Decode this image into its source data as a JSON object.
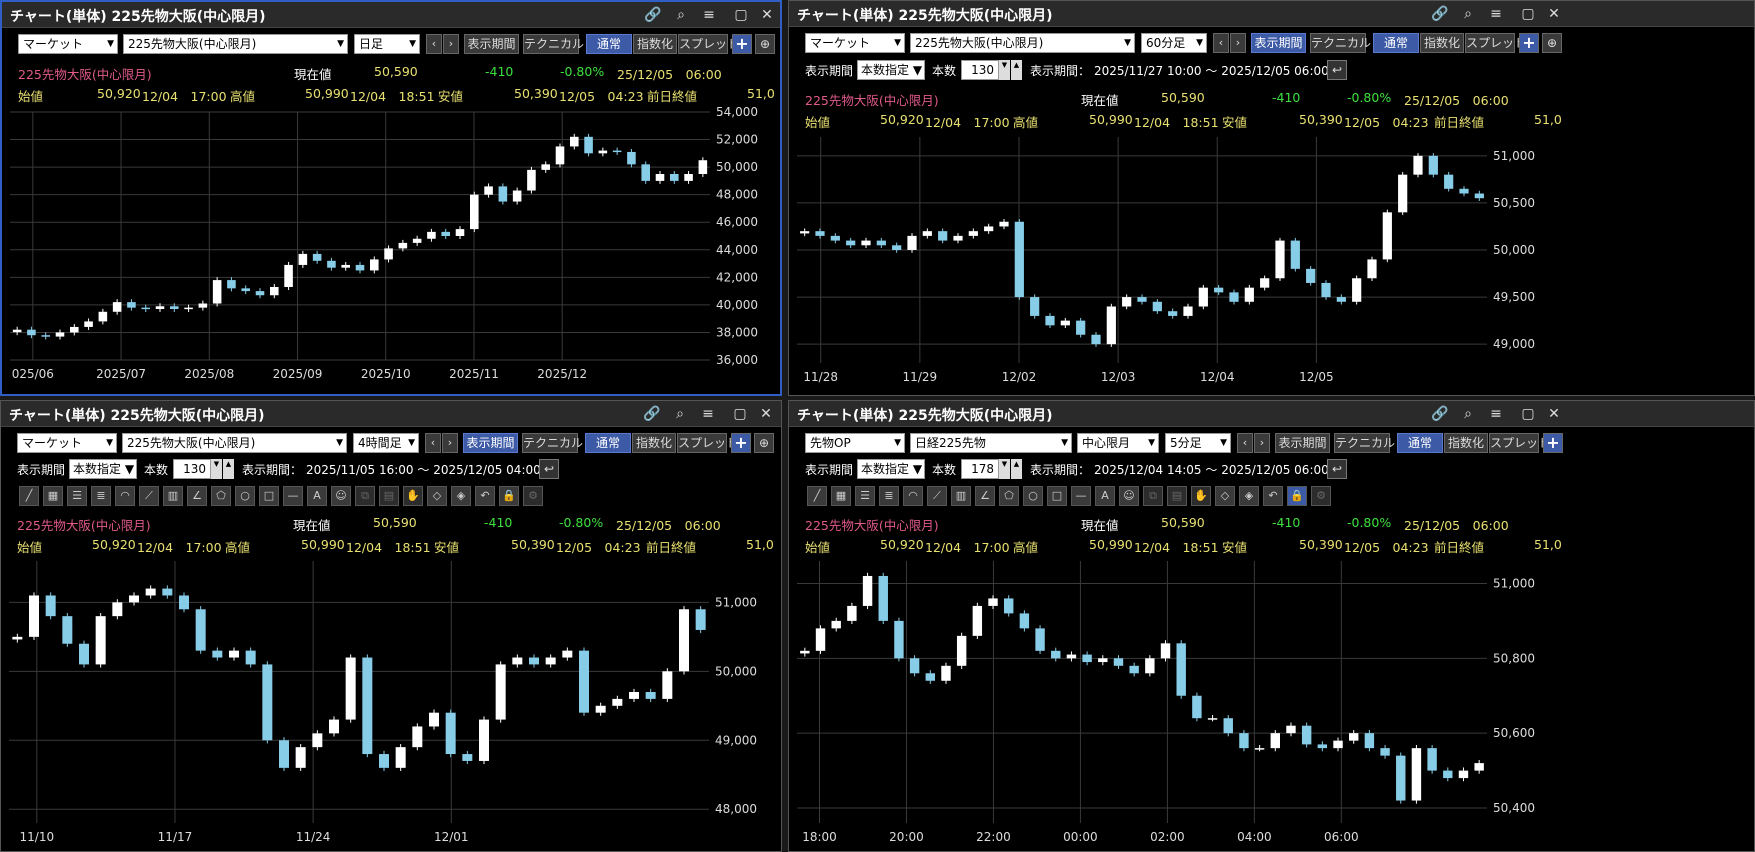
{
  "colors": {
    "accent": "#3c5aa6",
    "up": "#ffffff",
    "down": "#87cde8",
    "pink": "#e05a8a",
    "yellow": "#e8e070",
    "green": "#3ee03e"
  },
  "panels": [
    {
      "title": "チャート(単体) 225先物大阪(中心限月)",
      "selects": [
        "マーケット",
        "225先物大阪(中心限月)",
        "日足"
      ],
      "buttons": {
        "period": "表示期間",
        "technical": "テクニカル",
        "normal": "通常",
        "index": "指数化",
        "spread": "スプレッド"
      },
      "info1": {
        "name": "225先物大阪(中心限月)",
        "current_label": "現在値",
        "current": "50,590",
        "change": "-410",
        "change_pct": "-0.80%",
        "datetime": "25/12/05　06:00"
      },
      "info2": {
        "open_label": "始値",
        "open": "50,920",
        "open_time": "12/04　17:00",
        "high_label": "高値",
        "high": "50,990",
        "high_time": "12/04　18:51",
        "low_label": "安値",
        "low": "50,390",
        "low_time": "12/05　04:23",
        "prev_label": "前日終値",
        "prev": "51,0"
      },
      "chart_data": {
        "type": "candlestick",
        "y_ticks": [
          "54,000",
          "52,000",
          "50,000",
          "48,000",
          "46,000",
          "44,000",
          "42,000",
          "40,000",
          "38,000",
          "36,000"
        ],
        "x_ticks": [
          "025/06",
          "2025/07",
          "2025/08",
          "2025/09",
          "2025/10",
          "2025/11",
          "2025/12"
        ],
        "ylim": [
          36000,
          54000
        ],
        "series_close": [
          38200,
          37800,
          37700,
          38000,
          38400,
          38800,
          39500,
          40200,
          39800,
          39700,
          39900,
          39700,
          39800,
          40100,
          41800,
          41200,
          41000,
          40700,
          41300,
          42900,
          43700,
          43200,
          42700,
          42900,
          42500,
          43300,
          44100,
          44500,
          44800,
          45300,
          45000,
          45500,
          48000,
          48600,
          47500,
          48300,
          49800,
          50200,
          51500,
          52200,
          51000,
          51200,
          51100,
          50200,
          49000,
          49500,
          49000,
          49500,
          50500
        ]
      }
    },
    {
      "title": "チャート(単体) 225先物大阪(中心限月)",
      "selects": [
        "マーケット",
        "225先物大阪(中心限月)",
        "60分足"
      ],
      "buttons": {
        "period": "表示期間",
        "technical": "テクニカル",
        "normal": "通常",
        "index": "指数化",
        "spread": "スプレッド"
      },
      "period": {
        "label": "表示期間",
        "mode": "本数指定",
        "count_label": "本数",
        "count": "130",
        "range_label": "表示期間：",
        "range": "2025/11/27 10:00 ～ 2025/12/05 06:00"
      },
      "info1": {
        "name": "225先物大阪(中心限月)",
        "current_label": "現在値",
        "current": "50,590",
        "change": "-410",
        "change_pct": "-0.80%",
        "datetime": "25/12/05　06:00"
      },
      "info2": {
        "open_label": "始値",
        "open": "50,920",
        "open_time": "12/04　17:00",
        "high_label": "高値",
        "high": "50,990",
        "high_time": "12/04　18:51",
        "low_label": "安値",
        "low": "50,390",
        "low_time": "12/05　04:23",
        "prev_label": "前日終値",
        "prev": "51,0"
      },
      "chart_data": {
        "type": "candlestick",
        "y_ticks": [
          "51,000",
          "50,500",
          "50,000",
          "49,500",
          "49,000"
        ],
        "x_ticks": [
          "11/28",
          "11/29",
          "12/02",
          "12/03",
          "12/04",
          "12/05"
        ],
        "ylim": [
          48800,
          51200
        ],
        "series_close": [
          50200,
          50150,
          50100,
          50050,
          50100,
          50050,
          50000,
          50150,
          50200,
          50100,
          50150,
          50200,
          50250,
          50300,
          49500,
          49300,
          49200,
          49250,
          49100,
          49000,
          49400,
          49500,
          49450,
          49350,
          49300,
          49400,
          49600,
          49550,
          49450,
          49600,
          49700,
          50100,
          49800,
          49650,
          49500,
          49450,
          49700,
          49900,
          50400,
          50800,
          51000,
          50800,
          50650,
          50600,
          50550
        ]
      }
    },
    {
      "title": "チャート(単体) 225先物大阪(中心限月)",
      "selects": [
        "マーケット",
        "225先物大阪(中心限月)",
        "4時間足"
      ],
      "buttons": {
        "period": "表示期間",
        "technical": "テクニカル",
        "normal": "通常",
        "index": "指数化",
        "spread": "スプレッド"
      },
      "period": {
        "label": "表示期間",
        "mode": "本数指定",
        "count_label": "本数",
        "count": "130",
        "range_label": "表示期間：",
        "range": "2025/11/05 16:00 ～ 2025/12/05 04:00"
      },
      "info1": {
        "name": "225先物大阪(中心限月)",
        "current_label": "現在値",
        "current": "50,590",
        "change": "-410",
        "change_pct": "-0.80%",
        "datetime": "25/12/05　06:00"
      },
      "info2": {
        "open_label": "始値",
        "open": "50,920",
        "open_time": "12/04　17:00",
        "high_label": "高値",
        "high": "50,990",
        "high_time": "12/04　18:51",
        "low_label": "安値",
        "low": "50,390",
        "low_time": "12/05　04:23",
        "prev_label": "前日終値",
        "prev": "51,0"
      },
      "chart_data": {
        "type": "candlestick",
        "y_ticks": [
          "51,000",
          "50,000",
          "49,000",
          "48,000"
        ],
        "x_ticks": [
          "11/10",
          "11/17",
          "11/24",
          "12/01"
        ],
        "ylim": [
          47800,
          51600
        ],
        "series_close": [
          50500,
          51100,
          50800,
          50400,
          50100,
          50800,
          51000,
          51100,
          51200,
          51100,
          50900,
          50300,
          50200,
          50300,
          50100,
          49000,
          48600,
          48900,
          49100,
          49300,
          50200,
          48800,
          48600,
          48900,
          49200,
          49400,
          48800,
          48700,
          49300,
          50100,
          50200,
          50100,
          50200,
          50300,
          49400,
          49500,
          49600,
          49700,
          49600,
          50000,
          50900,
          50600
        ]
      }
    },
    {
      "title": "チャート(単体) 225先物大阪(中心限月)",
      "selects": [
        "先物OP",
        "日経225先物",
        "中心限月",
        "5分足"
      ],
      "buttons": {
        "period": "表示期間",
        "technical": "テクニカル",
        "normal": "通常",
        "index": "指数化",
        "spread": "スプレッド"
      },
      "period": {
        "label": "表示期間",
        "mode": "本数指定",
        "count_label": "本数",
        "count": "178",
        "range_label": "表示期間：",
        "range": "2025/12/04 14:05 ～ 2025/12/05 06:00"
      },
      "info1": {
        "name": "225先物大阪(中心限月)",
        "current_label": "現在値",
        "current": "50,590",
        "change": "-410",
        "change_pct": "-0.80%",
        "datetime": "25/12/05　06:00"
      },
      "info2": {
        "open_label": "始値",
        "open": "50,920",
        "open_time": "12/04　17:00",
        "high_label": "高値",
        "high": "50,990",
        "high_time": "12/04　18:51",
        "low_label": "安値",
        "low": "50,390",
        "low_time": "12/05　04:23",
        "prev_label": "前日終値",
        "prev": "51,0"
      },
      "chart_data": {
        "type": "candlestick",
        "y_ticks": [
          "51,000",
          "50,800",
          "50,600",
          "50,400"
        ],
        "x_ticks": [
          "18:00",
          "20:00",
          "22:00",
          "00:00",
          "02:00",
          "04:00",
          "06:00"
        ],
        "ylim": [
          50360,
          51060
        ],
        "series_close": [
          50820,
          50880,
          50900,
          50940,
          51020,
          50900,
          50800,
          50760,
          50740,
          50780,
          50860,
          50940,
          50960,
          50920,
          50880,
          50820,
          50800,
          50810,
          50790,
          50800,
          50780,
          50760,
          50800,
          50840,
          50700,
          50640,
          50640,
          50600,
          50560,
          50560,
          50600,
          50620,
          50570,
          50560,
          50580,
          50600,
          50560,
          50540,
          50420,
          50560,
          50500,
          50480,
          50500,
          50520
        ]
      }
    }
  ]
}
